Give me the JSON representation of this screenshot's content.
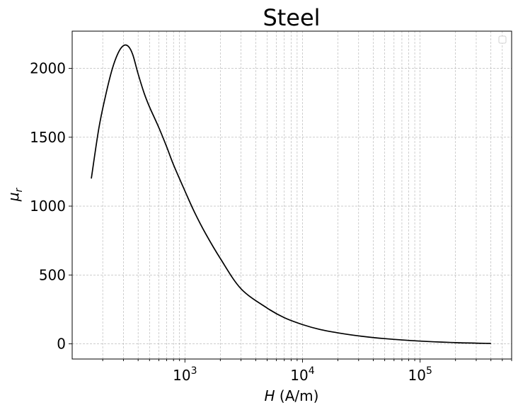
{
  "chart_data": {
    "type": "line",
    "title": "Steel",
    "xlabel": {
      "italic": "H",
      "rest": " (A/m)"
    },
    "ylabel": {
      "main": "μ",
      "sub": "r"
    },
    "xscale": "log",
    "xlim": [
      110,
      600000
    ],
    "ylim": [
      -110,
      2270
    ],
    "yticks": [
      0,
      500,
      1000,
      1500,
      2000
    ],
    "ytick_labels": [
      "0",
      "500",
      "1000",
      "1500",
      "2000"
    ],
    "xticks": [
      1000,
      10000,
      100000
    ],
    "xtick_labels": [
      {
        "base": "10",
        "exp": "3"
      },
      {
        "base": "10",
        "exp": "4"
      },
      {
        "base": "10",
        "exp": "5"
      }
    ],
    "grid": true,
    "legend": "top-right (empty)",
    "line_color": "#000000",
    "series": [
      {
        "x": [
          160,
          185,
          210,
          240,
          270,
          300,
          330,
          360,
          400,
          450,
          500,
          600,
          700,
          800,
          1000,
          1200,
          1500,
          2000,
          3000,
          5000,
          7000,
          10000,
          14000,
          20000,
          30000,
          50000,
          100000,
          200000,
          400000
        ],
        "y": [
          1200,
          1560,
          1790,
          1990,
          2110,
          2165,
          2160,
          2100,
          1960,
          1820,
          1720,
          1570,
          1430,
          1300,
          1110,
          960,
          800,
          620,
          400,
          260,
          190,
          140,
          105,
          80,
          58,
          38,
          20,
          9,
          3
        ]
      }
    ]
  }
}
